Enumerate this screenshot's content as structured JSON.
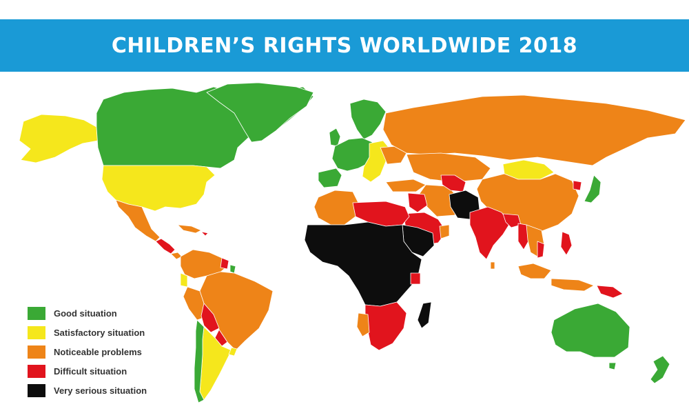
{
  "title": "CHILDREN’S RIGHTS WORLDWIDE 2018",
  "colors": {
    "title_bar": "#1a9ad6",
    "good": "#3aa935",
    "satisfactory": "#f5e71c",
    "noticeable": "#ee8418",
    "difficult": "#e1141d",
    "very_serious": "#0d0d0d"
  },
  "legend": [
    {
      "label": "Good situation",
      "category": "good",
      "color": "#3aa935"
    },
    {
      "label": "Satisfactory situation",
      "category": "satisfactory",
      "color": "#f5e71c"
    },
    {
      "label": "Noticeable problems",
      "category": "noticeable",
      "color": "#ee8418"
    },
    {
      "label": "Difficult situation",
      "category": "difficult",
      "color": "#e1141d"
    },
    {
      "label": "Very serious situation",
      "category": "very_serious",
      "color": "#0d0d0d"
    }
  ]
}
